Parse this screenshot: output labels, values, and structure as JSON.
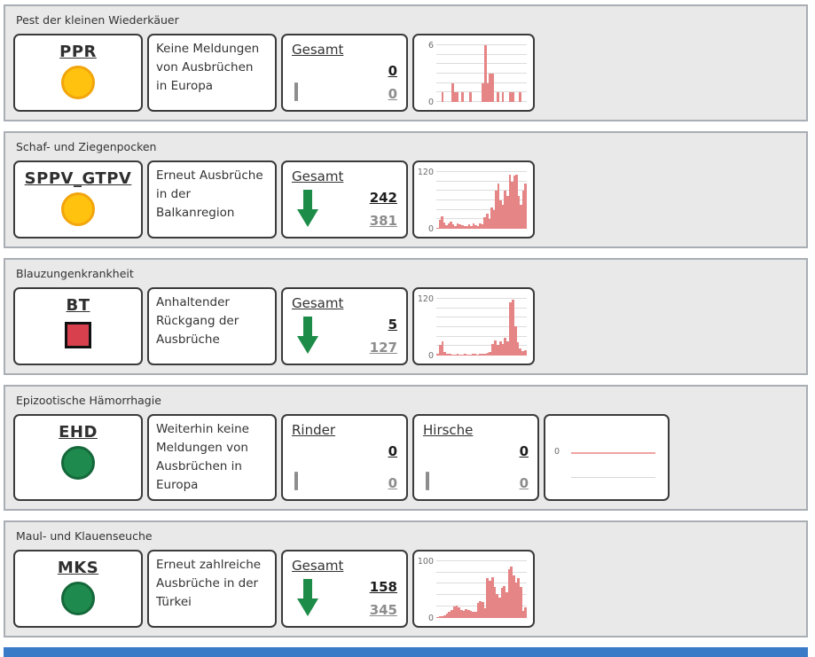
{
  "page": {
    "footer_bar_color": "#3a7bc8"
  },
  "colors": {
    "trend_down_arrow": "#1e8c49",
    "bar": "#e58585",
    "flat_line": "#f0a3a3",
    "value_previous": "#8d8d8d"
  },
  "sections": [
    {
      "title": "Pest der kleinen Wiederkäuer",
      "code": "PPR",
      "status": {
        "shape": "circle",
        "fill": "#ffc20e",
        "border": "#f2a50c"
      },
      "message": "Keine Meldungen von Ausbrüchen in Europa",
      "stats": [
        {
          "label": "Gesamt",
          "trend": "equal",
          "current": "0",
          "previous": "0"
        }
      ]
    },
    {
      "title": "Schaf- und Ziegenpocken",
      "code": "SPPV_GTPV",
      "status": {
        "shape": "circle",
        "fill": "#ffc20e",
        "border": "#f2a50c"
      },
      "message": "Erneut Ausbrüche in der Balkanregion",
      "stats": [
        {
          "label": "Gesamt",
          "trend": "down",
          "current": "242",
          "previous": "381"
        }
      ]
    },
    {
      "title": "Blauzungenkrankheit",
      "code": "BT",
      "status": {
        "shape": "square",
        "fill": "#d9404e",
        "border": "#111111"
      },
      "message": "Anhaltender Rückgang der Ausbrüche",
      "stats": [
        {
          "label": "Gesamt",
          "trend": "down",
          "current": "5",
          "previous": "127"
        }
      ]
    },
    {
      "title": "Epizootische Hämorrhagie",
      "code": "EHD",
      "status": {
        "shape": "circle",
        "fill": "#1f8a4d",
        "border": "#15683a"
      },
      "message": "Weiterhin keine Meldungen von Ausbrüchen in Europa",
      "stats": [
        {
          "label": "Rinder",
          "trend": "equal",
          "current": "0",
          "previous": "0"
        },
        {
          "label": "Hirsche",
          "trend": "equal",
          "current": "0",
          "previous": "0"
        }
      ]
    },
    {
      "title": "Maul- und Klauenseuche",
      "code": "MKS",
      "status": {
        "shape": "circle",
        "fill": "#1f8a4d",
        "border": "#15683a"
      },
      "message": "Erneut zahlreiche Ausbrüche in der Türkei",
      "stats": [
        {
          "label": "Gesamt",
          "trend": "down",
          "current": "158",
          "previous": "345"
        }
      ]
    }
  ],
  "chart_data": [
    {
      "type": "bar",
      "ylim": [
        0,
        6
      ],
      "grid_step": 1,
      "tick_labels": [
        "6",
        "0"
      ],
      "grid": true,
      "bar_color": "#e58585",
      "values": [
        0,
        0,
        1,
        0,
        0,
        0,
        2,
        1,
        1,
        0,
        1,
        0,
        0,
        1,
        0,
        0,
        0,
        0,
        2,
        6,
        2,
        3,
        3,
        0,
        1,
        0,
        1,
        0,
        0,
        1,
        1,
        0,
        0,
        1,
        0,
        0
      ]
    },
    {
      "type": "bar",
      "ylim": [
        0,
        120
      ],
      "grid_step": 20,
      "tick_labels": [
        "120",
        "0"
      ],
      "grid": true,
      "bar_color": "#e58585",
      "values": [
        2,
        18,
        26,
        14,
        8,
        12,
        15,
        10,
        6,
        12,
        10,
        7,
        5,
        6,
        9,
        6,
        11,
        8,
        5,
        12,
        10,
        24,
        32,
        20,
        45,
        40,
        80,
        95,
        60,
        50,
        80,
        70,
        115,
        100,
        112,
        115,
        70,
        50,
        80,
        95
      ]
    },
    {
      "type": "bar",
      "ylim": [
        0,
        120
      ],
      "grid_step": 20,
      "tick_labels": [
        "120",
        "0"
      ],
      "grid": true,
      "bar_color": "#e58585",
      "values": [
        4,
        22,
        30,
        8,
        4,
        3,
        2,
        2,
        3,
        2,
        2,
        3,
        2,
        2,
        3,
        3,
        2,
        3,
        4,
        3,
        5,
        8,
        24,
        32,
        22,
        30,
        24,
        38,
        30,
        112,
        118,
        62,
        28,
        15,
        10,
        12
      ]
    },
    {
      "type": "line",
      "ylim": [
        0,
        0
      ],
      "tick_labels": [
        "0"
      ],
      "grid": true,
      "line_color": "#f0a3a3",
      "values": [
        0,
        0,
        0,
        0,
        0,
        0,
        0,
        0,
        0,
        0,
        0,
        0
      ]
    },
    {
      "type": "bar",
      "ylim": [
        0,
        100
      ],
      "grid_step": 20,
      "tick_labels": [
        "100",
        "0"
      ],
      "grid": true,
      "bar_color": "#e58585",
      "values": [
        1,
        2,
        3,
        5,
        8,
        10,
        14,
        20,
        22,
        18,
        14,
        12,
        15,
        14,
        12,
        11,
        10,
        26,
        30,
        28,
        16,
        70,
        65,
        72,
        55,
        42,
        35,
        52,
        56,
        45,
        85,
        90,
        75,
        62,
        70,
        55,
        12,
        18
      ]
    }
  ]
}
